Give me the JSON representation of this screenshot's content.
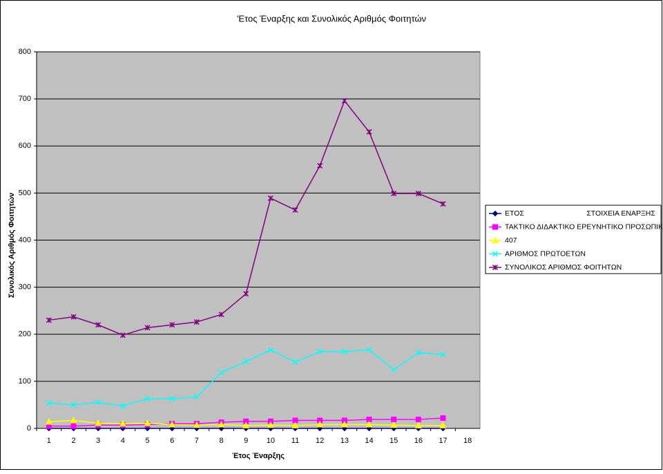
{
  "chart_data": {
    "type": "line",
    "title": "'Ετος Έναρξης και Συνολικός Αριθμός Φοιτητών",
    "x_label": "Έτος Έναρξης",
    "y_label": "Συνολικός Αριθμός Φοιτητών",
    "categories": [
      1,
      2,
      3,
      4,
      5,
      6,
      7,
      8,
      9,
      10,
      11,
      12,
      13,
      14,
      15,
      16,
      17,
      18
    ],
    "ylim": [
      0,
      800
    ],
    "yticks": [
      0,
      100,
      200,
      300,
      400,
      500,
      600,
      700,
      800
    ],
    "grid": true,
    "legend": "right",
    "series": [
      {
        "name": "ΕΤΟΣ                               ΣΤΟΙΧΕΙΑ ΕΝΑΡΞΗΣ",
        "color": "#000080",
        "marker": "diamond",
        "values": [
          0,
          0,
          0,
          0,
          0,
          0,
          0,
          0,
          0,
          0,
          0,
          0,
          0,
          0,
          0,
          0,
          0,
          null
        ]
      },
      {
        "name": "ΤΑΚΤΙΚΟ ΔΙΔΑΚΤΙΚΟ ΕΡΕΥΝΗΤΙΚΟ ΠΡΟΣΩΠΙΚΟ",
        "color": "#ff00ff",
        "marker": "square",
        "values": [
          5,
          5,
          7,
          7,
          8,
          10,
          10,
          13,
          15,
          15,
          17,
          17,
          17,
          19,
          19,
          19,
          22,
          null
        ]
      },
      {
        "name": "407",
        "color": "#ffff00",
        "marker": "triangle",
        "values": [
          14,
          17,
          11,
          10,
          11,
          8,
          7,
          8,
          6,
          7,
          6,
          8,
          8,
          8,
          7,
          6,
          6,
          null
        ]
      },
      {
        "name": "ΑΡΙΘΜΟΣ ΠΡΩΤΟΕΤΩΝ",
        "color": "#00ffff",
        "marker": "x",
        "values": [
          54,
          50,
          55,
          48,
          63,
          63,
          67,
          119,
          142,
          167,
          141,
          163,
          163,
          167,
          125,
          161,
          157,
          null
        ]
      },
      {
        "name": "ΣΥΝΟΛΙΚΟΣ ΑΡΙΘΜΟΣ ΦΟΙΤΗΤΩΝ",
        "color": "#800080",
        "marker": "star",
        "values": [
          230,
          237,
          220,
          198,
          214,
          220,
          226,
          242,
          286,
          489,
          464,
          558,
          696,
          630,
          499,
          499,
          477,
          null
        ]
      }
    ]
  }
}
